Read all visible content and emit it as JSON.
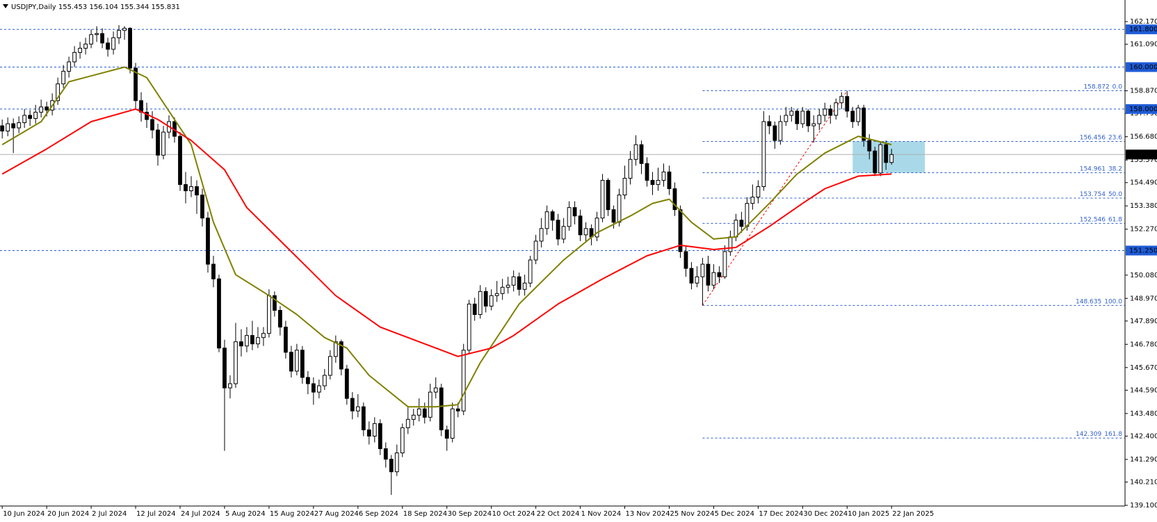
{
  "chart_data": {
    "type": "candlestick",
    "title": "USDJPY,Daily",
    "xlim": [
      -0.4,
      202
    ],
    "ylim": [
      139.1,
      163.2
    ],
    "bull_color": "#ffffff",
    "bear_color": "#000000",
    "open": [
      157.2,
      156.95,
      157.3,
      157.1,
      157.35,
      157.7,
      157.55,
      157.85,
      158.1,
      157.95,
      158.4,
      159.2,
      159.8,
      160.25,
      160.7,
      160.9,
      161.1,
      161.55,
      161.6,
      161.15,
      160.85,
      161.4,
      161.75,
      161.85,
      159.95,
      158.4,
      157.85,
      157.5,
      157.0,
      155.8,
      156.9,
      157.4,
      156.7,
      154.4,
      154.1,
      154.3,
      153.9,
      152.8,
      150.6,
      149.9,
      146.6,
      144.7,
      144.9,
      146.9,
      146.7,
      147.2,
      146.8,
      147.1,
      147.3,
      149.1,
      148.4,
      147.6,
      146.4,
      145.5,
      146.5,
      145.2,
      144.9,
      144.5,
      144.8,
      145.3,
      146.2,
      146.9,
      145.6,
      144.2,
      143.6,
      143.8,
      142.7,
      142.4,
      143.0,
      141.8,
      141.3,
      140.7,
      141.6,
      142.8,
      143.2,
      143.4,
      143.7,
      143.3,
      144.5,
      144.7,
      142.7,
      142.3,
      143.7,
      143.6,
      146.5,
      148.7,
      148.2,
      149.3,
      148.6,
      149.1,
      149.2,
      149.5,
      149.6,
      150.0,
      149.4,
      149.7,
      150.8,
      151.7,
      152.3,
      153.1,
      152.7,
      151.8,
      152.4,
      153.3,
      152.9,
      152.0,
      152.3,
      151.9,
      152.8,
      154.6,
      153.2,
      152.6,
      153.9,
      154.7,
      155.6,
      156.3,
      155.4,
      154.6,
      154.4,
      154.6,
      155.0,
      154.2,
      153.2,
      151.2,
      150.4,
      149.7,
      150.0,
      150.6,
      149.6,
      150.2,
      150.0,
      151.2,
      151.9,
      152.7,
      152.4,
      153.5,
      153.8,
      154.3,
      157.4,
      157.2,
      156.5,
      157.4,
      157.7,
      157.9,
      157.3,
      157.9,
      157.2,
      157.3,
      157.7,
      158.0,
      157.7,
      158.3,
      158.6,
      157.9,
      157.4,
      158.05,
      156.5,
      156.0,
      154.95,
      156.3,
      155.453
    ],
    "high": [
      157.5,
      157.6,
      157.55,
      157.65,
      158.0,
      157.95,
      158.2,
      158.45,
      158.35,
      158.75,
      159.5,
      160.1,
      160.5,
      161.0,
      161.2,
      161.4,
      161.8,
      161.95,
      161.85,
      161.4,
      161.7,
      162.0,
      161.95,
      161.9,
      160.2,
      158.8,
      158.3,
      157.9,
      157.3,
      157.2,
      157.7,
      157.6,
      156.9,
      155.0,
      154.8,
      154.6,
      154.2,
      153.1,
      151.0,
      150.1,
      147.0,
      145.3,
      147.8,
      147.5,
      147.6,
      147.9,
      147.6,
      147.6,
      149.4,
      149.3,
      148.6,
      147.9,
      146.7,
      146.8,
      146.7,
      145.5,
      145.2,
      145.1,
      145.6,
      146.5,
      147.2,
      147.0,
      145.8,
      144.5,
      144.4,
      144.0,
      143.1,
      143.3,
      143.2,
      142.1,
      141.5,
      142.0,
      143.0,
      143.8,
      143.7,
      144.2,
      144.0,
      144.9,
      145.2,
      144.9,
      142.9,
      144.0,
      144.0,
      146.8,
      148.9,
      149.0,
      149.6,
      149.5,
      149.4,
      149.8,
      149.9,
      150.0,
      150.3,
      150.2,
      150.1,
      151.0,
      152.0,
      152.8,
      153.4,
      153.2,
      153.0,
      152.8,
      153.6,
      153.6,
      153.2,
      152.6,
      152.5,
      153.1,
      154.9,
      154.7,
      153.4,
      154.2,
      155.3,
      156.0,
      156.75,
      156.5,
      155.7,
      155.0,
      155.2,
      155.4,
      155.3,
      154.5,
      153.4,
      151.5,
      150.7,
      150.5,
      150.9,
      151.0,
      150.6,
      150.5,
      151.5,
      152.2,
      153.0,
      153.1,
      153.8,
      154.4,
      154.6,
      157.9,
      157.7,
      157.4,
      157.7,
      158.1,
      158.1,
      158.0,
      158.1,
      158.0,
      157.7,
      158.0,
      158.3,
      158.2,
      158.5,
      158.8,
      158.872,
      158.1,
      158.2,
      158.2,
      156.8,
      156.2,
      156.4,
      156.5,
      156.104
    ],
    "low": [
      156.6,
      156.7,
      155.9,
      156.85,
      157.1,
      157.2,
      157.3,
      157.6,
      157.65,
      157.7,
      158.2,
      159.0,
      159.5,
      160.0,
      160.4,
      160.6,
      160.9,
      161.2,
      160.9,
      160.5,
      160.6,
      161.1,
      161.3,
      159.7,
      158.0,
      157.4,
      157.1,
      156.6,
      155.3,
      155.6,
      156.6,
      156.4,
      154.1,
      153.5,
      153.8,
      153.0,
      152.4,
      150.2,
      149.5,
      146.4,
      141.7,
      144.2,
      144.7,
      146.2,
      146.4,
      146.5,
      146.6,
      146.7,
      147.1,
      148.1,
      147.2,
      146.1,
      145.2,
      145.3,
      144.9,
      144.4,
      143.9,
      144.2,
      144.6,
      145.1,
      145.9,
      145.3,
      143.9,
      143.2,
      143.3,
      142.4,
      142.0,
      142.1,
      141.5,
      140.9,
      139.6,
      140.5,
      141.4,
      142.5,
      142.9,
      143.1,
      143.0,
      143.1,
      144.2,
      142.4,
      141.7,
      142.1,
      143.3,
      143.4,
      146.3,
      147.9,
      148.0,
      148.3,
      148.4,
      148.8,
      148.9,
      149.2,
      149.3,
      149.1,
      149.1,
      149.5,
      150.6,
      151.4,
      152.0,
      152.2,
      151.5,
      151.6,
      152.2,
      152.5,
      151.7,
      151.7,
      151.5,
      151.7,
      152.6,
      152.9,
      152.3,
      152.4,
      153.7,
      154.4,
      155.3,
      154.9,
      154.3,
      153.9,
      154.1,
      154.3,
      153.9,
      152.9,
      150.9,
      150.0,
      149.4,
      149.5,
      148.635,
      149.3,
      149.4,
      149.7,
      149.9,
      151.0,
      151.7,
      152.1,
      152.2,
      153.2,
      153.5,
      154.1,
      156.8,
      156.1,
      156.3,
      157.2,
      157.4,
      157.0,
      157.1,
      156.9,
      156.4,
      157.0,
      157.4,
      157.3,
      157.5,
      158.0,
      157.6,
      157.1,
      157.2,
      156.2,
      155.6,
      154.8,
      154.8,
      155.1,
      155.344
    ],
    "close": [
      156.95,
      157.3,
      157.1,
      157.35,
      157.7,
      157.55,
      157.85,
      158.1,
      157.95,
      158.4,
      159.2,
      159.8,
      160.25,
      160.7,
      160.9,
      161.1,
      161.55,
      161.6,
      161.15,
      160.85,
      161.4,
      161.75,
      161.85,
      159.95,
      158.4,
      157.85,
      157.5,
      157.0,
      155.8,
      156.9,
      157.4,
      156.7,
      154.4,
      154.1,
      154.3,
      153.9,
      152.8,
      150.6,
      149.9,
      146.6,
      144.7,
      144.9,
      146.9,
      146.7,
      147.2,
      146.8,
      147.1,
      147.3,
      149.1,
      148.4,
      147.6,
      146.4,
      145.5,
      146.5,
      145.2,
      144.9,
      144.5,
      144.8,
      145.3,
      146.2,
      146.9,
      145.6,
      144.2,
      143.6,
      143.8,
      142.7,
      142.4,
      143.0,
      141.8,
      141.3,
      140.7,
      141.6,
      142.8,
      143.2,
      143.4,
      143.7,
      143.3,
      144.5,
      144.7,
      142.7,
      142.3,
      143.7,
      143.6,
      146.5,
      148.7,
      148.2,
      149.3,
      148.6,
      149.1,
      149.2,
      149.5,
      149.6,
      150.0,
      149.4,
      149.7,
      150.8,
      151.7,
      152.3,
      153.1,
      152.7,
      151.8,
      152.4,
      153.3,
      152.9,
      152.0,
      152.3,
      151.9,
      152.8,
      154.6,
      153.2,
      152.6,
      153.9,
      154.7,
      155.6,
      156.3,
      155.4,
      154.6,
      154.4,
      154.6,
      155.0,
      154.2,
      153.2,
      151.2,
      150.4,
      149.7,
      150.0,
      150.6,
      149.6,
      150.2,
      150.0,
      151.2,
      151.9,
      152.7,
      152.4,
      153.5,
      153.8,
      154.3,
      157.4,
      157.2,
      156.5,
      157.4,
      157.7,
      157.9,
      157.3,
      157.9,
      157.2,
      157.3,
      157.7,
      158.0,
      157.7,
      158.3,
      158.6,
      157.9,
      157.4,
      158.05,
      156.5,
      156.0,
      154.95,
      156.3,
      155.45,
      155.831
    ],
    "ma": [
      {
        "color": "#808000",
        "x": [
          0,
          7,
          12,
          22,
          26,
          30,
          34,
          38,
          42,
          48,
          53,
          58,
          62,
          66,
          73,
          78,
          82,
          86,
          93,
          101,
          107,
          113,
          117,
          120,
          124,
          128,
          132,
          138,
          143,
          148,
          154,
          160
        ],
        "values": [
          156.3,
          157.4,
          159.3,
          160.0,
          159.5,
          157.9,
          156.3,
          152.6,
          150.1,
          149.1,
          148.2,
          147.1,
          146.6,
          145.3,
          143.8,
          143.8,
          143.9,
          145.9,
          148.7,
          150.8,
          152.1,
          152.9,
          153.5,
          153.7,
          152.6,
          151.8,
          151.9,
          153.5,
          154.9,
          155.9,
          156.7,
          156.3
        ]
      },
      {
        "color": "#ff0000",
        "x": [
          0,
          8,
          16,
          24,
          28,
          34,
          40,
          44,
          52,
          60,
          68,
          76,
          82,
          88,
          92,
          100,
          108,
          116,
          122,
          128,
          132,
          138,
          144,
          148,
          154,
          160
        ],
        "values": [
          154.9,
          156.1,
          157.4,
          158.0,
          157.5,
          156.5,
          155.1,
          153.3,
          151.2,
          149.1,
          147.6,
          146.8,
          146.2,
          146.6,
          147.2,
          148.7,
          149.9,
          151.0,
          151.5,
          151.3,
          151.4,
          152.4,
          153.5,
          154.2,
          154.8,
          154.9
        ]
      }
    ],
    "levels": [
      {
        "value": 161.8,
        "label": "161.800"
      },
      {
        "value": 160,
        "label": "160.000"
      },
      {
        "value": 158,
        "label": "158.000"
      },
      {
        "value": 151.25,
        "label": "151.250"
      }
    ],
    "level_color": "#1f5bd6",
    "fib": {
      "start": 126,
      "end": 152,
      "color": "#2f5fd0",
      "trend_color": "#ff0000",
      "levels": [
        {
          "price": 158.872,
          "ratio": "0.0"
        },
        {
          "price": 156.456,
          "ratio": "23.6"
        },
        {
          "price": 154.961,
          "ratio": "38.2"
        },
        {
          "price": 153.754,
          "ratio": "50.0"
        },
        {
          "price": 152.546,
          "ratio": "61.8"
        },
        {
          "price": 148.635,
          "ratio": "100.0"
        },
        {
          "price": 142.309,
          "ratio": "161.8"
        }
      ]
    },
    "zone": {
      "start": 153,
      "end": 166,
      "color": "#a9d9e8"
    },
    "yticks": [
      {
        "value": 162.17,
        "label": "162.170"
      },
      {
        "value": 161.09,
        "label": "161.090"
      },
      {
        "value": 158.87,
        "label": "158.870"
      },
      {
        "value": 157.79,
        "label": "157.790"
      },
      {
        "value": 156.68,
        "label": "156.680"
      },
      {
        "value": 155.57,
        "label": "155.570"
      },
      {
        "value": 154.49,
        "label": "154.490"
      },
      {
        "value": 153.38,
        "label": "153.380"
      },
      {
        "value": 152.27,
        "label": "152.270"
      },
      {
        "value": 150.08,
        "label": "150.080"
      },
      {
        "value": 148.97,
        "label": "148.970"
      },
      {
        "value": 147.89,
        "label": "147.890"
      },
      {
        "value": 146.78,
        "label": "146.780"
      },
      {
        "value": 145.67,
        "label": "145.670"
      },
      {
        "value": 144.59,
        "label": "144.590"
      },
      {
        "value": 143.48,
        "label": "143.480"
      },
      {
        "value": 142.4,
        "label": "142.400"
      },
      {
        "value": 141.29,
        "label": "141.290"
      },
      {
        "value": 140.21,
        "label": "140.210"
      },
      {
        "value": 139.1,
        "label": "139.100"
      }
    ],
    "xticks": [
      {
        "value": 0,
        "label": "10 Jun 2024"
      },
      {
        "value": 8,
        "label": "20 Jun 2024"
      },
      {
        "value": 16,
        "label": "2 Jul 2024"
      },
      {
        "value": 24,
        "label": "12 Jul 2024"
      },
      {
        "value": 32,
        "label": "24 Jul 2024"
      },
      {
        "value": 40,
        "label": "5 Aug 2024"
      },
      {
        "value": 48,
        "label": "15 Aug 2024"
      },
      {
        "value": 56,
        "label": "27 Aug 2024"
      },
      {
        "value": 64,
        "label": "6 Sep 2024"
      },
      {
        "value": 72,
        "label": "18 Sep 2024"
      },
      {
        "value": 80,
        "label": "30 Sep 2024"
      },
      {
        "value": 88,
        "label": "10 Oct 2024"
      },
      {
        "value": 96,
        "label": "22 Oct 2024"
      },
      {
        "value": 104,
        "label": "1 Nov 2024"
      },
      {
        "value": 112,
        "label": "13 Nov 2024"
      },
      {
        "value": 120,
        "label": "25 Nov 2024"
      },
      {
        "value": 128,
        "label": "5 Dec 2024"
      },
      {
        "value": 136,
        "label": "17 Dec 2024"
      },
      {
        "value": 144,
        "label": "30 Dec 2024"
      },
      {
        "value": 152,
        "label": "10 Jan 2025"
      },
      {
        "value": 160,
        "label": "22 Jan 2025"
      }
    ]
  }
}
